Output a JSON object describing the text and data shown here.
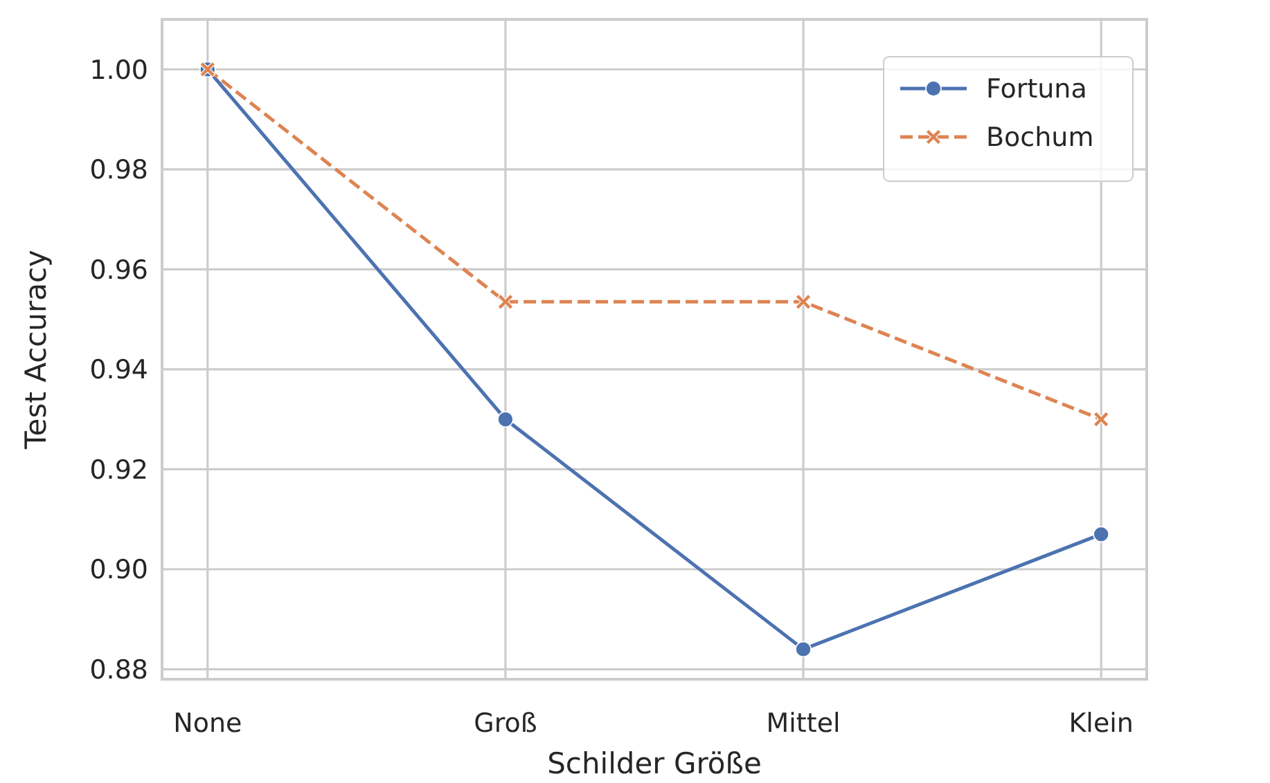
{
  "chart_data": {
    "type": "line",
    "xlabel": "Schilder Größe",
    "ylabel": "Test Accuracy",
    "categories": [
      "None",
      "Groß",
      "Mittel",
      "Klein"
    ],
    "series": [
      {
        "name": "Fortuna",
        "color": "#4c72b0",
        "values": [
          1.0,
          0.93,
          0.884,
          0.907
        ],
        "marker": "circle",
        "line_style": "solid"
      },
      {
        "name": "Bochum",
        "color": "#dd8452",
        "values": [
          1.0,
          0.9535,
          0.9535,
          0.93
        ],
        "marker": "cross",
        "line_style": "dashed"
      }
    ],
    "ylim": [
      0.878,
      1.01
    ],
    "yticks": [
      {
        "value": 0.88,
        "label": "0.88"
      },
      {
        "value": 0.9,
        "label": "0.90"
      },
      {
        "value": 0.92,
        "label": "0.92"
      },
      {
        "value": 0.94,
        "label": "0.94"
      },
      {
        "value": 0.96,
        "label": "0.96"
      },
      {
        "value": 0.98,
        "label": "0.98"
      },
      {
        "value": 1.0,
        "label": "1.00"
      }
    ],
    "grid": true,
    "legend": "top right"
  }
}
